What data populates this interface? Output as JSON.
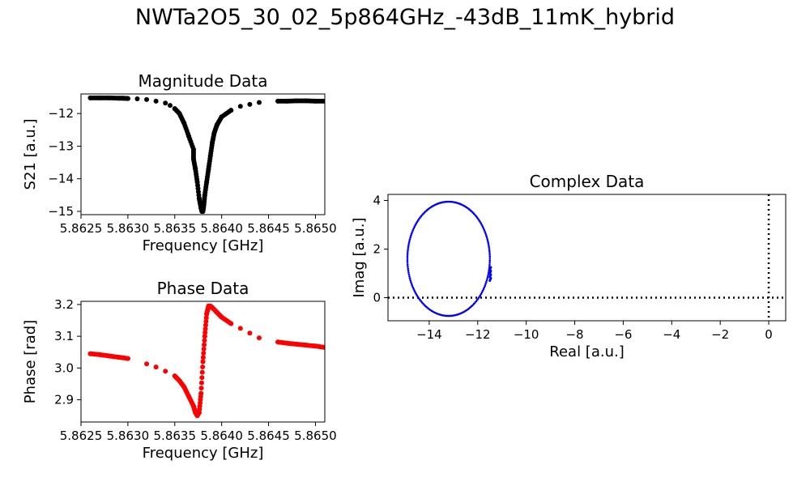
{
  "figure_title": "NWTa2O5_30_02_5p864GHz_-43dB_11mK_hybrid",
  "chart_data": [
    {
      "id": "magnitude",
      "type": "scatter",
      "title": "Magnitude Data",
      "xlabel": "Frequency [GHz]",
      "ylabel": "S21 [a.u.]",
      "xlim": [
        5.8625,
        5.8651
      ],
      "ylim": [
        -15.1,
        -11.4
      ],
      "xticks": [
        5.8625,
        5.863,
        5.8635,
        5.864,
        5.8645,
        5.865
      ],
      "xtick_labels": [
        "5.8625",
        "5.8630",
        "5.8635",
        "5.8640",
        "5.8645",
        "5.8650"
      ],
      "yticks": [
        -15,
        -14,
        -13,
        -12
      ],
      "ytick_labels": [
        "−15",
        "−14",
        "−13",
        "−12"
      ],
      "color": "#000000",
      "series": [
        {
          "x": [
            5.8626,
            5.8627,
            5.8628,
            5.8629,
            5.86295,
            5.863,
            5.8631,
            5.8632,
            5.8633,
            5.8634,
            5.86345,
            5.8635,
            5.86355,
            5.8636,
            5.86365,
            5.8637,
            5.8637,
            5.86372,
            5.86374,
            5.86376,
            5.86378,
            5.86379,
            5.8638,
            5.86381,
            5.86382,
            5.86384,
            5.86386,
            5.86388,
            5.8639,
            5.86392,
            5.86395,
            5.864,
            5.8641,
            5.8642,
            5.8643,
            5.8644,
            5.8646,
            5.8647,
            5.8648,
            5.8649,
            5.865,
            5.8651
          ],
          "y": [
            -11.52,
            -11.52,
            -11.52,
            -11.53,
            -11.53,
            -11.54,
            -11.55,
            -11.57,
            -11.62,
            -11.68,
            -11.75,
            -11.85,
            -12.0,
            -12.3,
            -12.7,
            -13.1,
            -13.4,
            -13.7,
            -14.1,
            -14.6,
            -14.9,
            -15.0,
            -15.0,
            -14.8,
            -14.5,
            -14.1,
            -13.7,
            -13.3,
            -12.9,
            -12.6,
            -12.35,
            -12.1,
            -11.9,
            -11.78,
            -11.72,
            -11.66,
            -11.62,
            -11.62,
            -11.61,
            -11.61,
            -11.62,
            -11.62
          ]
        }
      ]
    },
    {
      "id": "phase",
      "type": "scatter",
      "title": "Phase Data",
      "xlabel": "Frequency [GHz]",
      "ylabel": "Phase [rad]",
      "xlim": [
        5.8625,
        5.8651
      ],
      "ylim": [
        2.83,
        3.21
      ],
      "xticks": [
        5.8625,
        5.863,
        5.8635,
        5.864,
        5.8645,
        5.865
      ],
      "xtick_labels": [
        "5.8625",
        "5.8630",
        "5.8635",
        "5.8640",
        "5.8645",
        "5.8650"
      ],
      "yticks": [
        2.9,
        3.0,
        3.1,
        3.2
      ],
      "ytick_labels": [
        "2.9",
        "3.0",
        "3.1",
        "3.2"
      ],
      "color": "#ff0000",
      "series": [
        {
          "x": [
            5.8626,
            5.8627,
            5.8628,
            5.8629,
            5.863,
            5.8632,
            5.8633,
            5.8634,
            5.8635,
            5.86355,
            5.8636,
            5.86365,
            5.8637,
            5.86372,
            5.86374,
            5.86376,
            5.86378,
            5.8638,
            5.86382,
            5.86384,
            5.86386,
            5.86388,
            5.8639,
            5.86395,
            5.864,
            5.8641,
            5.8642,
            5.8643,
            5.8644,
            5.8646,
            5.8647,
            5.8648,
            5.8649,
            5.865,
            5.8651
          ],
          "y": [
            3.045,
            3.042,
            3.038,
            3.034,
            3.03,
            3.013,
            3.003,
            2.99,
            2.975,
            2.96,
            2.94,
            2.91,
            2.88,
            2.86,
            2.85,
            2.86,
            2.92,
            3.02,
            3.1,
            3.17,
            3.195,
            3.195,
            3.19,
            3.175,
            3.16,
            3.14,
            3.125,
            3.11,
            3.095,
            3.082,
            3.078,
            3.075,
            3.072,
            3.069,
            3.065
          ]
        }
      ]
    },
    {
      "id": "complex",
      "type": "scatter",
      "title": "Complex Data",
      "xlabel": "Real [a.u.]",
      "ylabel": "Imag [a.u.]",
      "xlim": [
        -15.7,
        0.7
      ],
      "ylim": [
        -0.95,
        4.25
      ],
      "xticks": [
        -14,
        -12,
        -10,
        -8,
        -6,
        -4,
        -2,
        0
      ],
      "xtick_labels": [
        "−14",
        "−12",
        "−10",
        "−8",
        "−6",
        "−4",
        "−2",
        "0"
      ],
      "yticks": [
        0,
        2,
        4
      ],
      "ytick_labels": [
        "0",
        "2",
        "4"
      ],
      "color": "#0000ff",
      "circle": {
        "center_real": -13.2,
        "center_imag": 1.6,
        "radius_real": 1.7,
        "radius_imag": 2.35,
        "gap_real_min": -11.5
      },
      "reference_lines": {
        "x": 0,
        "y": 0,
        "style": "dotted",
        "color": "#000000"
      }
    }
  ]
}
